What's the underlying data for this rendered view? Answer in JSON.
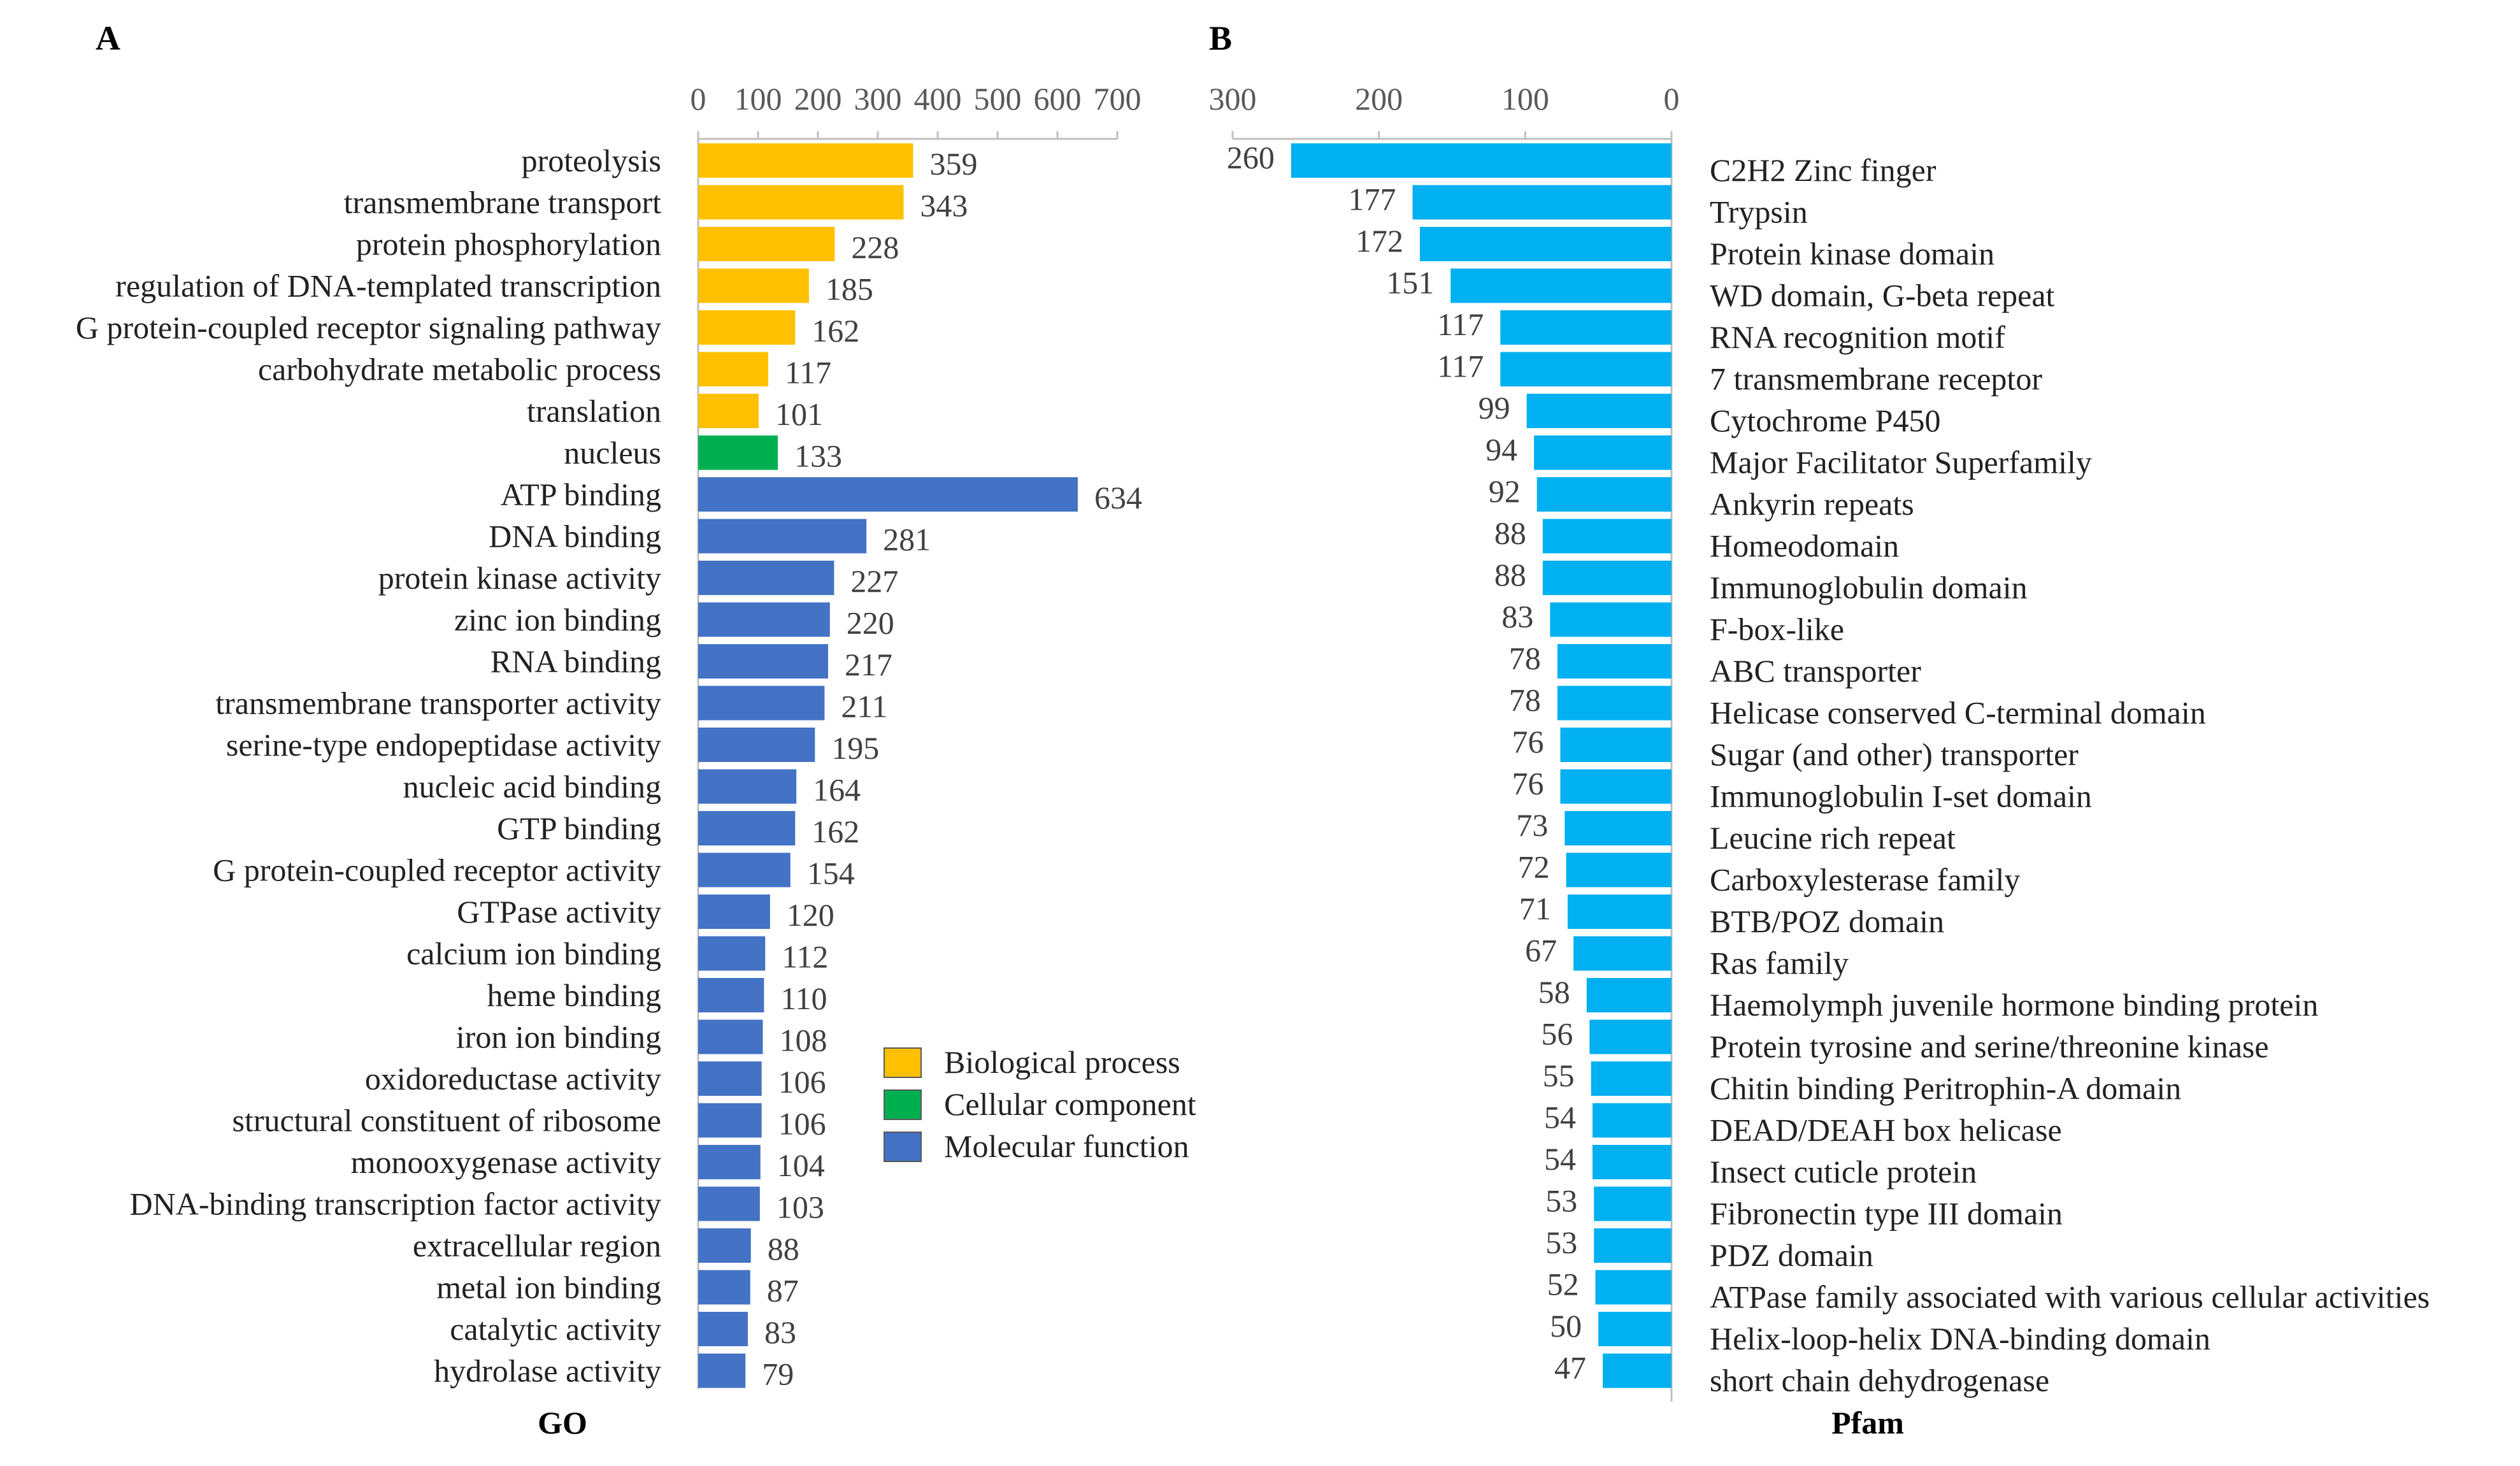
{
  "panels": {
    "a": "A",
    "b": "B"
  },
  "colors": {
    "biological": "#FFC000",
    "cellular": "#00B050",
    "molecular": "#4472C4",
    "pfam": "#00B0F0",
    "axis": "#BFBFBF"
  },
  "legend": [
    {
      "key": "biological",
      "label": "Biological process"
    },
    {
      "key": "cellular",
      "label": "Cellular component"
    },
    {
      "key": "molecular",
      "label": "Molecular function"
    }
  ],
  "chart_data": [
    {
      "type": "bar",
      "orientation": "horizontal",
      "title": "GO",
      "xlim": [
        0,
        700
      ],
      "ticks": [
        0,
        100,
        200,
        300,
        400,
        500,
        600,
        700
      ],
      "categories": [
        "proteolysis",
        "transmembrane transport",
        "protein phosphorylation",
        "regulation of DNA-templated transcription",
        "G protein-coupled receptor signaling pathway",
        "carbohydrate metabolic process",
        "translation",
        "nucleus",
        "ATP binding",
        "DNA binding",
        "protein kinase activity",
        "zinc ion binding",
        "RNA binding",
        "transmembrane transporter activity",
        "serine-type endopeptidase activity",
        "nucleic acid binding",
        "GTP binding",
        "G protein-coupled receptor activity",
        "GTPase activity",
        "calcium ion binding",
        "heme binding",
        "iron ion binding",
        "oxidoreductase activity",
        "structural constituent of ribosome",
        "monooxygenase activity",
        "DNA-binding transcription factor activity",
        "extracellular region",
        "metal ion binding",
        "catalytic activity",
        "hydrolase activity"
      ],
      "values": [
        359,
        343,
        228,
        185,
        162,
        117,
        101,
        133,
        634,
        281,
        227,
        220,
        217,
        211,
        195,
        164,
        162,
        154,
        120,
        112,
        110,
        108,
        106,
        106,
        104,
        103,
        88,
        87,
        83,
        79
      ],
      "groups": [
        "biological",
        "biological",
        "biological",
        "biological",
        "biological",
        "biological",
        "biological",
        "cellular",
        "molecular",
        "molecular",
        "molecular",
        "molecular",
        "molecular",
        "molecular",
        "molecular",
        "molecular",
        "molecular",
        "molecular",
        "molecular",
        "molecular",
        "molecular",
        "molecular",
        "molecular",
        "molecular",
        "molecular",
        "molecular",
        "molecular",
        "molecular",
        "molecular",
        "molecular"
      ]
    },
    {
      "type": "bar",
      "orientation": "horizontal-reversed",
      "title": "Pfam",
      "xlim": [
        0,
        300
      ],
      "ticks": [
        300,
        200,
        100,
        0
      ],
      "categories": [
        "C2H2 Zinc finger",
        "Trypsin",
        "Protein kinase domain",
        "WD domain, G-beta repeat",
        "RNA recognition motif",
        "7 transmembrane receptor",
        "Cytochrome P450",
        "Major Facilitator Superfamily",
        "Ankyrin repeats",
        "Homeodomain",
        "Immunoglobulin domain",
        "F-box-like",
        "ABC transporter",
        "Helicase conserved C-terminal domain",
        "Sugar (and other) transporter",
        "Immunoglobulin I-set domain",
        "Leucine rich repeat",
        "Carboxylesterase family",
        "BTB/POZ domain",
        "Ras family",
        "Haemolymph juvenile hormone binding protein",
        "Protein tyrosine and serine/threonine kinase",
        "Chitin binding Peritrophin-A domain",
        "DEAD/DEAH box helicase",
        "Insect cuticle protein",
        "Fibronectin type III domain",
        "PDZ domain",
        "ATPase family associated with various cellular activities",
        "Helix-loop-helix DNA-binding domain",
        "short chain dehydrogenase"
      ],
      "values": [
        260,
        177,
        172,
        151,
        117,
        117,
        99,
        94,
        92,
        88,
        88,
        83,
        78,
        78,
        76,
        76,
        73,
        72,
        71,
        67,
        58,
        56,
        55,
        54,
        54,
        53,
        53,
        52,
        50,
        47
      ]
    }
  ]
}
